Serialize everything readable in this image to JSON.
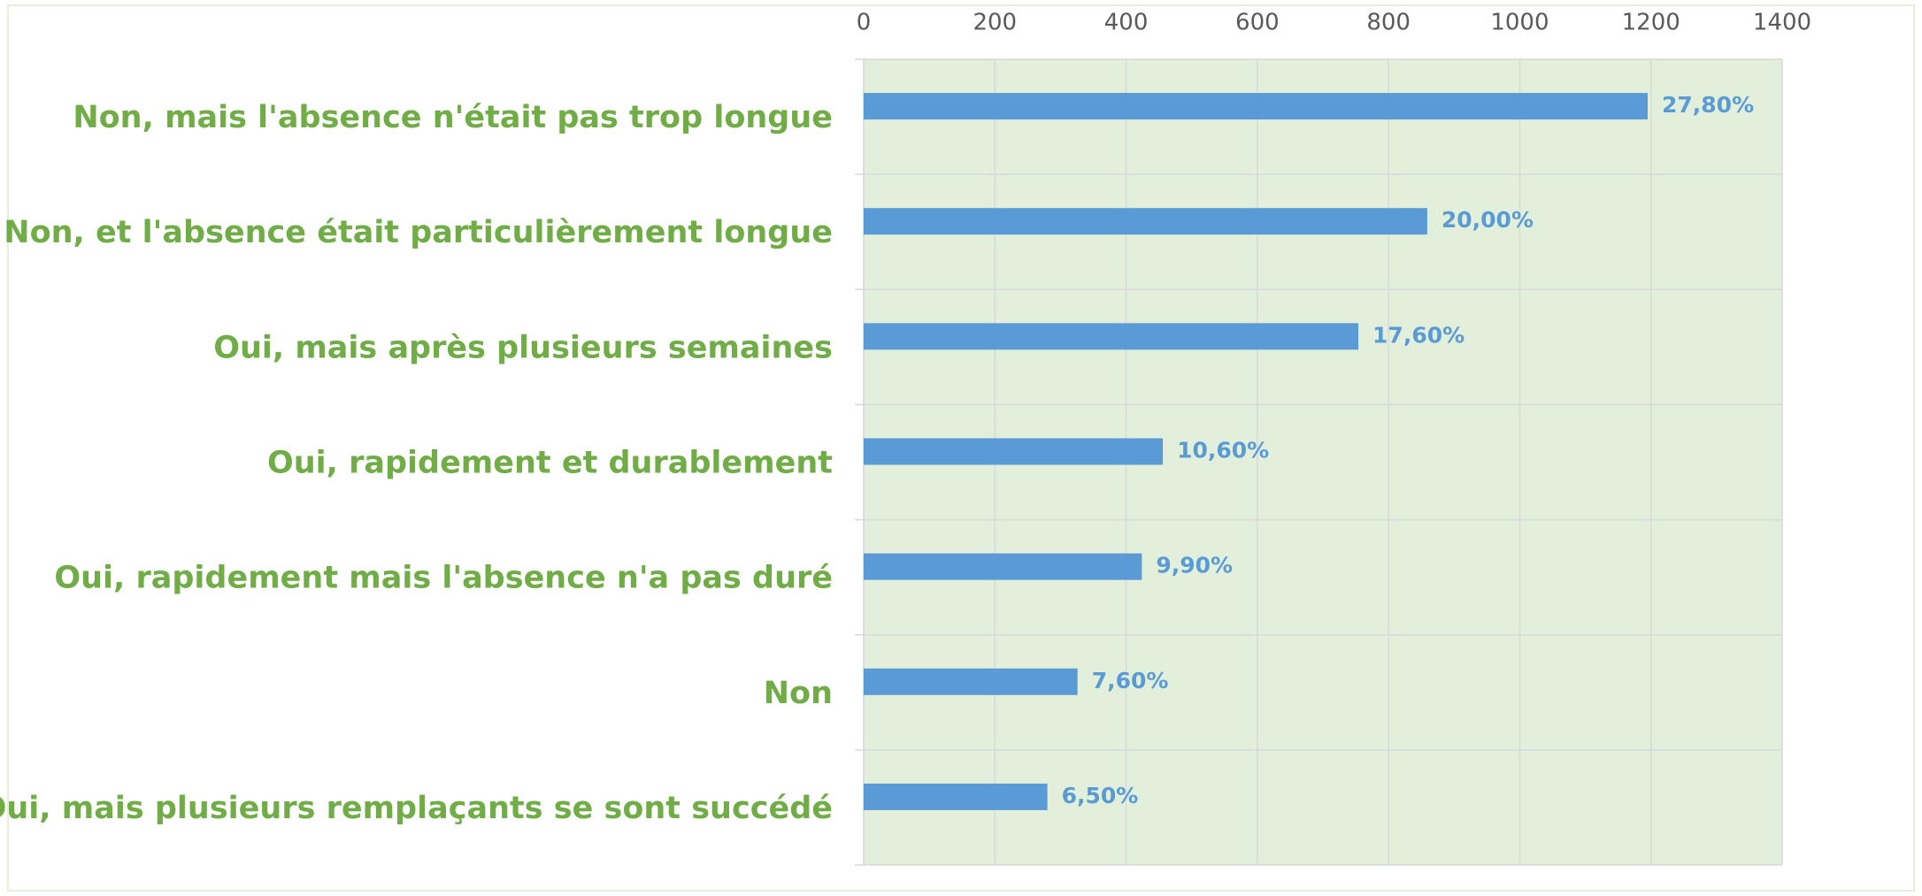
{
  "chart_data": {
    "type": "bar",
    "orientation": "horizontal",
    "categories": [
      "Non, mais l'absence n'était pas trop longue",
      "Non, et l'absence était particulièrement longue",
      "Oui, mais après plusieurs semaines",
      "Oui, rapidement et durablement",
      "Oui, rapidement mais l'absence n'a pas duré",
      "Non",
      "Oui, mais plusieurs remplaçants se sont succédé"
    ],
    "values": [
      1195,
      859,
      754,
      456,
      424,
      326,
      280
    ],
    "data_labels": [
      "27,80%",
      "20,00%",
      "17,60%",
      "10,60%",
      "9,90%",
      "7,60%",
      "6,50%"
    ],
    "color": "#5b9bd5",
    "xlim": [
      0,
      1400
    ],
    "xticks": [
      0,
      200,
      400,
      600,
      800,
      1000,
      1200,
      1400
    ],
    "grid": true,
    "plot_background": "#e2efda"
  }
}
